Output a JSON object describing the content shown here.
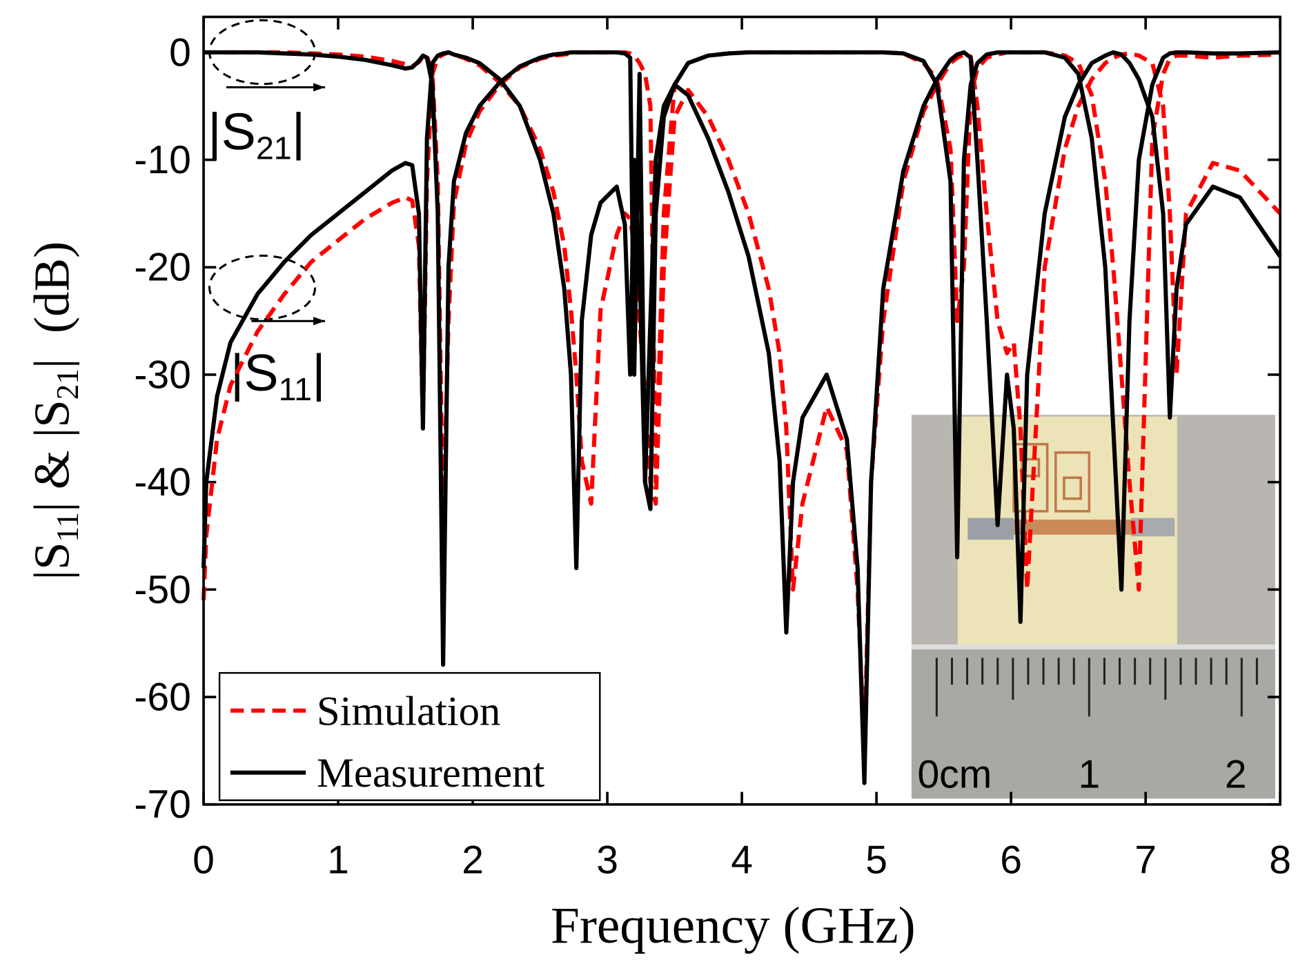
{
  "chart_data": {
    "type": "line",
    "xlabel": "Frequency (GHz)",
    "ylabel": {
      "parts": [
        {
          "text": "|S"
        },
        {
          "sub": "11"
        },
        {
          "text": "| & |S"
        },
        {
          "sub": "21"
        },
        {
          "text": "|  (dB)"
        }
      ]
    },
    "annotations": [
      {
        "parts": [
          {
            "text": "|S"
          },
          {
            "sub": "21"
          },
          {
            "text": "|"
          }
        ]
      },
      {
        "parts": [
          {
            "text": "|S"
          },
          {
            "sub": "11"
          },
          {
            "text": "|"
          }
        ]
      }
    ],
    "inset_labels": [
      "0cm",
      "1",
      "2"
    ],
    "xlim": [
      0,
      8
    ],
    "xticks": [
      0,
      1,
      2,
      3,
      4,
      5,
      6,
      7,
      8
    ],
    "ylim": [
      -70,
      3.3
    ],
    "yticks": [
      -70,
      -60,
      -50,
      -40,
      -30,
      -20,
      -10,
      0
    ],
    "x": [
      0,
      0.02,
      0.1,
      0.2,
      0.4,
      0.6,
      0.8,
      1.0,
      1.2,
      1.4,
      1.5,
      1.55,
      1.6,
      1.63,
      1.66,
      1.7,
      1.74,
      1.78,
      1.82,
      1.86,
      1.95,
      2.05,
      2.2,
      2.35,
      2.5,
      2.6,
      2.68,
      2.73,
      2.77,
      2.81,
      2.88,
      2.95,
      3.07,
      3.13,
      3.17,
      3.2,
      3.24,
      3.28,
      3.32,
      3.36,
      3.42,
      3.5,
      3.6,
      3.75,
      3.9,
      4.05,
      4.2,
      4.28,
      4.33,
      4.38,
      4.45,
      4.63,
      4.78,
      4.86,
      4.91,
      4.96,
      5.05,
      5.2,
      5.35,
      5.45,
      5.55,
      5.6,
      5.65,
      5.7,
      5.75,
      5.82,
      5.9,
      5.97,
      6.02,
      6.07,
      6.12,
      6.25,
      6.4,
      6.5,
      6.6,
      6.7,
      6.76,
      6.82,
      6.88,
      6.95,
      7.05,
      7.13,
      7.18,
      7.23,
      7.3,
      7.5,
      7.7,
      8.0
    ],
    "series": [
      {
        "name": "Simulation",
        "color": "#ff0000",
        "dash": "16 9",
        "curves": [
          {
            "values": [
              0,
              0,
              0,
              0,
              0,
              0,
              -0.1,
              -0.2,
              -0.4,
              -0.8,
              -1.1,
              -1.3,
              -0.9,
              -0.4,
              -0.3,
              -2,
              -12,
              -45,
              -25,
              -14,
              -8.5,
              -5.5,
              -3,
              -1.4,
              -0.6,
              -0.3,
              -0.2,
              -0.1,
              0,
              0,
              0,
              0,
              0,
              0,
              -0.1,
              -0.3,
              -1,
              -2,
              -5,
              -40,
              -15,
              -3,
              -1,
              -0.3,
              -0.1,
              0,
              0,
              0,
              0,
              0,
              0,
              0,
              0,
              0,
              0,
              0,
              0,
              -0.1,
              -1,
              -2.5,
              -9,
              -25,
              -20,
              -4,
              -1.5,
              -0.5,
              -0.2,
              0,
              0,
              0,
              0,
              0,
              -0.3,
              -1,
              -4,
              -12,
              -20,
              -30,
              -40,
              -50,
              -8,
              -2,
              -0.6,
              -0.3,
              -0.3,
              -0.5,
              -0.3,
              -0.2
            ]
          },
          {
            "values": [
              -51,
              -45,
              -36,
              -31,
              -26,
              -22.5,
              -19.5,
              -17.5,
              -15.5,
              -14,
              -13.5,
              -13.8,
              -18,
              -35,
              -12,
              -2,
              -0.5,
              -0.2,
              0,
              -0.2,
              -0.6,
              -1.2,
              -2.8,
              -5,
              -9,
              -13,
              -18,
              -24,
              -30,
              -38,
              -42,
              -24,
              -17,
              -15,
              -15.5,
              -18,
              -25,
              -32,
              -40,
              -42,
              -20,
              -6,
              -3.5,
              -6,
              -10,
              -15,
              -22,
              -28,
              -35,
              -50,
              -42,
              -33,
              -37,
              -50,
              -65,
              -40,
              -25,
              -12,
              -5.5,
              -3,
              -1,
              -0.5,
              -0.2,
              -0.4,
              -5,
              -15,
              -25,
              -28,
              -27,
              -35,
              -50,
              -20,
              -9,
              -5,
              -2.5,
              -1,
              -0.5,
              -0.2,
              -0.1,
              -0.3,
              -1,
              -5,
              -15,
              -30,
              -15,
              -10.3,
              -11,
              -15
            ]
          }
        ]
      },
      {
        "name": "Measurement",
        "color": "#000000",
        "curves": [
          {
            "values": [
              0,
              0,
              0,
              0,
              0,
              -0.1,
              -0.2,
              -0.4,
              -0.7,
              -1.2,
              -1.5,
              -1.4,
              -0.8,
              -0.3,
              -0.5,
              -3,
              -15,
              -57,
              -20,
              -12,
              -7.5,
              -5,
              -2.8,
              -1.3,
              -0.5,
              -0.2,
              -0.1,
              0,
              0,
              0,
              0,
              0,
              0,
              -0.1,
              -0.5,
              -30,
              -2,
              -40,
              -42.5,
              -15,
              -6,
              -3,
              -1,
              -0.3,
              -0.1,
              0,
              0,
              0,
              0,
              0,
              0,
              0,
              0,
              0,
              0,
              0,
              0,
              -0.1,
              -0.8,
              -3,
              -12,
              -47,
              -10,
              -3,
              -1,
              -0.2,
              0,
              0,
              0,
              0,
              0,
              0,
              -0.5,
              -2,
              -8,
              -20,
              -35,
              -50,
              -25,
              -10,
              -3,
              -0.5,
              -0.1,
              0,
              0,
              -0.1,
              -0.1,
              0
            ]
          },
          {
            "values": [
              -48,
              -40,
              -32,
              -27,
              -22.5,
              -19.5,
              -17,
              -15,
              -13,
              -11,
              -10.3,
              -10.5,
              -15,
              -35,
              -8,
              -1,
              -0.3,
              -0.1,
              0,
              -0.2,
              -0.5,
              -1,
              -2.5,
              -5,
              -10,
              -15,
              -22,
              -30,
              -48,
              -25,
              -17,
              -14,
              -12.5,
              -16,
              -30,
              -10,
              -20,
              -40,
              -25,
              -10,
              -5,
              -3,
              -4,
              -8,
              -13,
              -19,
              -28,
              -38,
              -54,
              -40,
              -34,
              -30,
              -36,
              -48,
              -68,
              -40,
              -22,
              -11,
              -5,
              -2.5,
              -0.7,
              -0.2,
              0,
              -0.5,
              -10,
              -25,
              -44,
              -30,
              -35,
              -53,
              -30,
              -15,
              -6,
              -3,
              -1,
              -0.3,
              0,
              -0.2,
              -1,
              -2.5,
              -6,
              -15,
              -34,
              -22,
              -16,
              -12.5,
              -13.5,
              -19
            ]
          }
        ]
      }
    ]
  }
}
